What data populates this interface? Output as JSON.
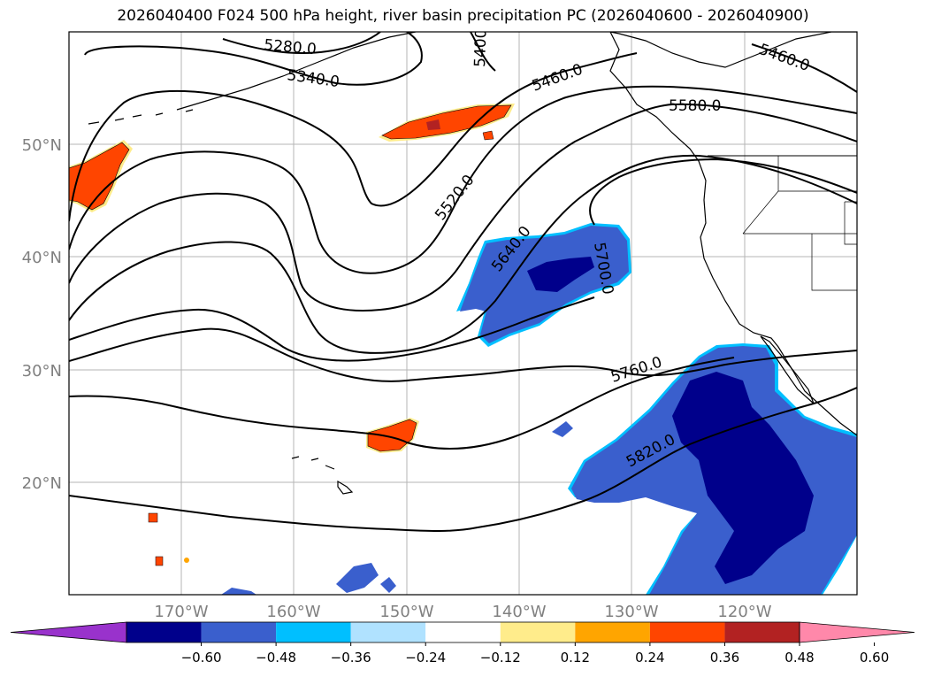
{
  "title": "2026040400 F024 500 hPa height, river basin precipitation PC (2026040600 - 2026040900)",
  "lat_labels": [
    "50°N",
    "40°N",
    "30°N",
    "20°N"
  ],
  "lon_labels": [
    "170°W",
    "160°W",
    "150°W",
    "140°W",
    "130°W",
    "120°W"
  ],
  "contour_labels": [
    "5280.0",
    "5340.0",
    "5400.0",
    "5460.0",
    "5460.0",
    "5520.0",
    "5580.0",
    "5640.0",
    "5700.0",
    "5760.0",
    "5820.0"
  ],
  "colorbar": {
    "ticks": [
      "−0.60",
      "−0.48",
      "−0.36",
      "−0.24",
      "−0.12",
      "0.12",
      "0.24",
      "0.36",
      "0.48",
      "0.60"
    ],
    "colors": [
      "#9932cc",
      "#00008b",
      "#3a5fcd",
      "#00bfff",
      "#b0e2ff",
      "#ffffff",
      "#ffec8b",
      "#ffa500",
      "#ff4500",
      "#b22222",
      "#ff88aa"
    ]
  },
  "map_colors": {
    "positive_outer": "#ffec8b",
    "positive_mid": "#ffa500",
    "positive_main": "#ff4500",
    "positive_core": "#b22222",
    "negative_edge": "#b0e2ff",
    "negative_ring": "#00bfff",
    "negative_main": "#3a5fcd",
    "negative_core": "#00008b"
  }
}
